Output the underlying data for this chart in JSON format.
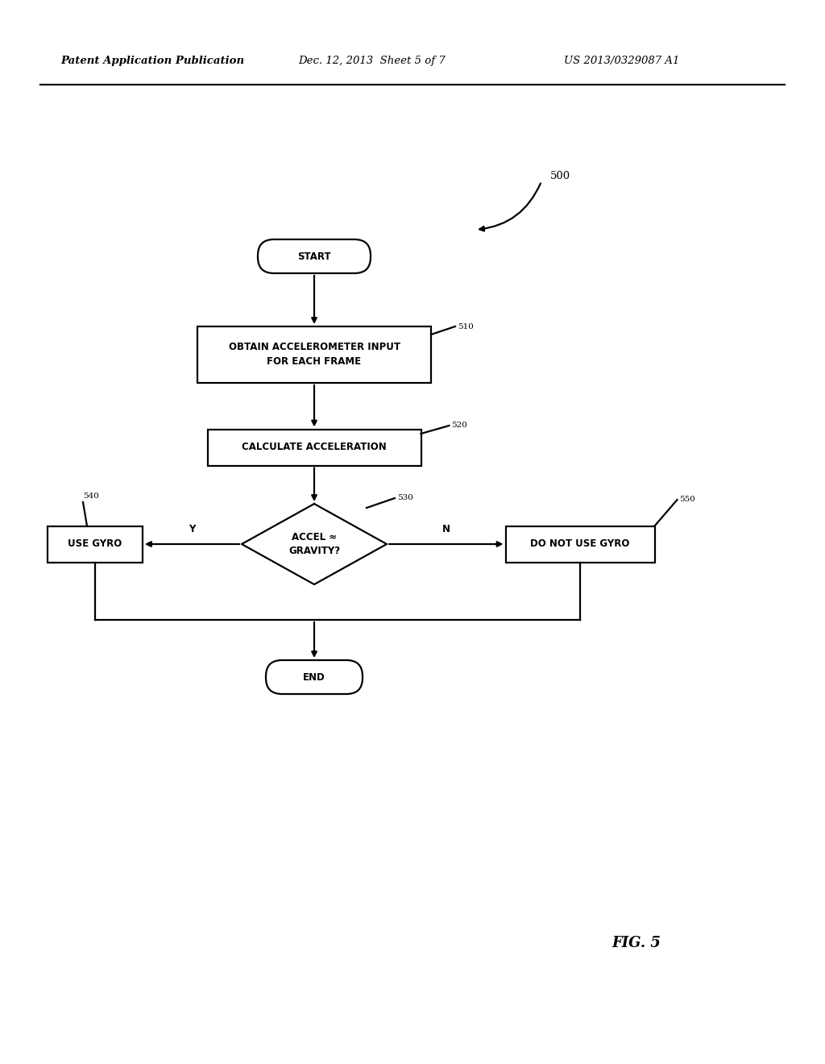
{
  "bg_color": "#ffffff",
  "text_color": "#000000",
  "header_left": "Patent Application Publication",
  "header_mid": "Dec. 12, 2013  Sheet 5 of 7",
  "header_right": "US 2013/0329087 A1",
  "fig_label": "FIG. 5",
  "ref_500": "500",
  "ref_510": "510",
  "ref_520": "520",
  "ref_530": "530",
  "ref_540": "540",
  "ref_550": "550",
  "start_text": "START",
  "box1_text": "OBTAIN ACCELEROMETER INPUT\nFOR EACH FRAME",
  "box2_text": "CALCULATE ACCELERATION",
  "diamond_text": "ACCEL ≈\nGRAVITY?",
  "box_left_text": "USE GYRO",
  "box_right_text": "DO NOT USE GYRO",
  "end_text": "END",
  "y_label": "Y",
  "n_label": "N",
  "line_width": 1.6,
  "font_size": 8.5,
  "header_font_size": 9.5,
  "fig_font_size": 13
}
